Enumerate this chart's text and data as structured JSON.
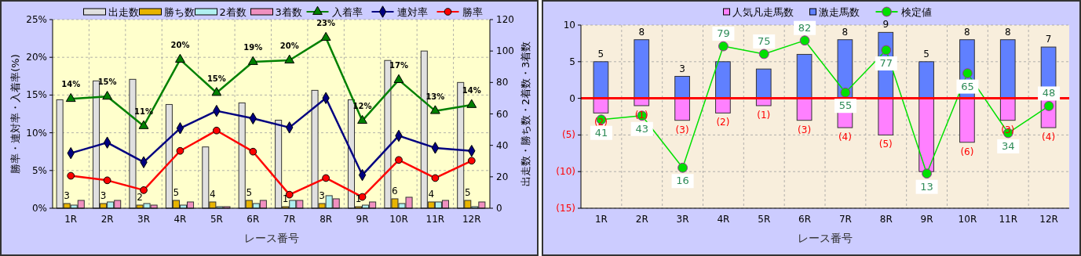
{
  "chart_data": [
    {
      "type": "bar",
      "categories": [
        "1R",
        "2R",
        "3R",
        "4R",
        "5R",
        "6R",
        "7R",
        "8R",
        "9R",
        "10R",
        "11R",
        "12R"
      ],
      "xlabel": "レース番号",
      "ylabel": "勝率・連対率・入着率(%)",
      "y2label": "出走数・勝ち数・2着数・3着数",
      "ylim": [
        0,
        25
      ],
      "yticks": [
        {
          "value": 0,
          "label": "0%"
        },
        {
          "value": 5,
          "label": "5%"
        },
        {
          "value": 10,
          "label": "10%"
        },
        {
          "value": 15,
          "label": "15%"
        },
        {
          "value": 20,
          "label": "20%"
        },
        {
          "value": 25,
          "label": "25%"
        }
      ],
      "y2lim": [
        0,
        120
      ],
      "y2ticks": [
        0,
        20,
        40,
        60,
        80,
        100,
        120
      ],
      "grid": true,
      "legend": "top",
      "series": [
        {
          "name": "出走数",
          "axis": "y2",
          "color": "#e0e0e0",
          "values": [
            69,
            81,
            82,
            66,
            39,
            67,
            56,
            75,
            69,
            94,
            100,
            80
          ]
        },
        {
          "name": "勝ち数",
          "axis": "y2",
          "color": "#e8b400",
          "values": [
            3,
            3,
            2,
            5,
            4,
            5,
            1,
            3,
            1,
            6,
            4,
            5
          ],
          "value_labels": [
            "3",
            "3",
            "2",
            "5",
            "4",
            "5",
            "1",
            "3",
            "1",
            "6",
            "4",
            "5"
          ]
        },
        {
          "name": "2着数",
          "axis": "y2",
          "color": "#b0f0f0",
          "values": [
            2,
            4,
            3,
            2,
            1,
            3,
            5,
            8,
            2,
            3,
            4,
            1
          ]
        },
        {
          "name": "3着数",
          "axis": "y2",
          "color": "#f090c0",
          "values": [
            5,
            5,
            2,
            4,
            1,
            5,
            5,
            6,
            4,
            7,
            5,
            4
          ]
        },
        {
          "name": "入着率",
          "type": "line",
          "color": "#008000",
          "marker": "triangle",
          "values": [
            14.5,
            14.8,
            10.9,
            19.7,
            15.3,
            19.4,
            19.6,
            22.6,
            11.6,
            17.0,
            12.9,
            13.7
          ],
          "value_labels": [
            "14%",
            "15%",
            "11%",
            "20%",
            "15%",
            "19%",
            "20%",
            "23%",
            "12%",
            "17%",
            "13%",
            "14%"
          ]
        },
        {
          "name": "連対率",
          "type": "line",
          "color": "#000080",
          "marker": "diamond",
          "values": [
            7.3,
            8.7,
            6.1,
            10.6,
            12.9,
            11.9,
            10.7,
            14.6,
            4.4,
            9.6,
            8.0,
            7.6
          ]
        },
        {
          "name": "勝率",
          "type": "line",
          "color": "#ff0000",
          "marker": "circle",
          "values": [
            4.3,
            3.7,
            2.4,
            7.6,
            10.3,
            7.5,
            1.8,
            4.0,
            1.5,
            6.4,
            4.0,
            6.3
          ]
        }
      ]
    },
    {
      "type": "bar",
      "stacked": true,
      "categories": [
        "1R",
        "2R",
        "3R",
        "4R",
        "5R",
        "6R",
        "7R",
        "8R",
        "9R",
        "10R",
        "11R",
        "12R"
      ],
      "xlabel": "レース番号",
      "ylim": [
        -15,
        10
      ],
      "yticks": [
        {
          "value": -15,
          "label": "(15)"
        },
        {
          "value": -10,
          "label": "(10)"
        },
        {
          "value": -5,
          "label": "(5)"
        },
        0,
        5,
        10
      ],
      "y2lim": [
        -5,
        90
      ],
      "grid": true,
      "legend": "top",
      "ref_lines": [
        {
          "axis": "y",
          "value": 0,
          "color": "#ff0000"
        }
      ],
      "series": [
        {
          "name": "人気凡走馬数",
          "color": "#ff80ff",
          "values": [
            -2,
            -1,
            -3,
            -2,
            -1,
            -3,
            -4,
            -5,
            -10,
            -6,
            -3,
            -4
          ],
          "value_labels": [
            "(2)",
            "(1)",
            "(3)",
            "(2)",
            "(1)",
            "(3)",
            "(4)",
            "(5)",
            null,
            "(6)",
            "(3)",
            "(4)"
          ]
        },
        {
          "name": "激走馬数",
          "color": "#6080ff",
          "values": [
            5,
            8,
            3,
            5,
            4,
            6,
            8,
            9,
            5,
            8,
            8,
            7
          ],
          "value_labels": [
            "5",
            "8",
            "3",
            null,
            null,
            null,
            "8",
            "9",
            "5",
            "8",
            "8",
            "7"
          ]
        },
        {
          "name": "検定値",
          "type": "line",
          "axis": "y2",
          "color": "#00e000",
          "marker": "circle",
          "values": [
            41,
            43,
            16,
            79,
            75,
            82,
            55,
            77,
            13,
            65,
            34,
            48
          ],
          "value_labels": [
            "41",
            "43",
            "16",
            "79",
            "75",
            "82",
            "55",
            "77",
            "13",
            "65",
            "34",
            "48"
          ]
        }
      ]
    }
  ]
}
